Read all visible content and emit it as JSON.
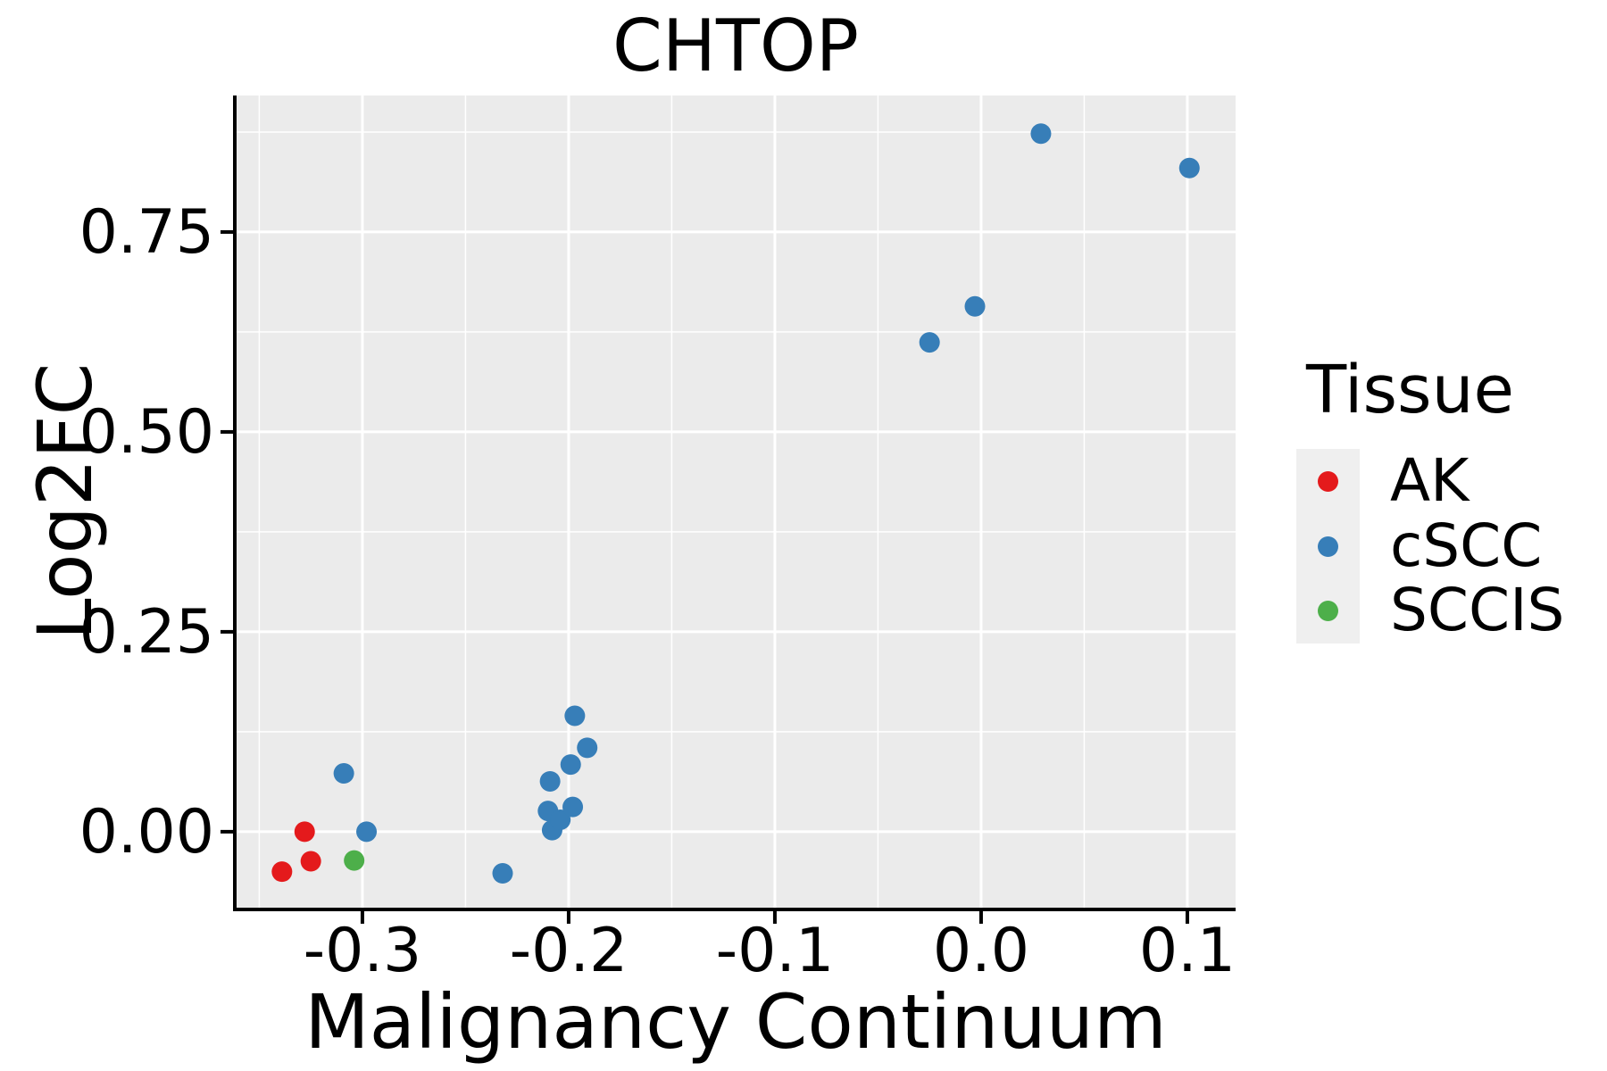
{
  "chart_data": {
    "type": "scatter",
    "title": "CHTOP",
    "xlabel": "Malignancy Continuum",
    "ylabel": "Log2FC",
    "legend_title": "Tissue",
    "legend_position": "right",
    "grid": "on",
    "panel_bg_color": "#EBEBEB",
    "gridline_color": "#FFFFFF",
    "axis_color": "#000000",
    "xlim": [
      -0.361,
      0.1234
    ],
    "ylim": [
      -0.095,
      0.9207
    ],
    "x_major_ticks": [
      {
        "value": -0.3,
        "label": "-0.3"
      },
      {
        "value": -0.2,
        "label": "-0.2"
      },
      {
        "value": -0.1,
        "label": "-0.1"
      },
      {
        "value": 0.0,
        "label": "0.0"
      },
      {
        "value": 0.1,
        "label": "0.1"
      }
    ],
    "x_minor_ticks": [
      -0.35,
      -0.25,
      -0.15,
      -0.05,
      0.05
    ],
    "y_major_ticks": [
      {
        "value": 0.0,
        "label": "0.00"
      },
      {
        "value": 0.25,
        "label": "0.25"
      },
      {
        "value": 0.5,
        "label": "0.50"
      },
      {
        "value": 0.75,
        "label": "0.75"
      }
    ],
    "y_minor_ticks": [
      0.125,
      0.375,
      0.625,
      0.875
    ],
    "point_radius": 11.5,
    "series": [
      {
        "name": "AK",
        "color": "#E41A1C",
        "points": [
          [
            -0.328,
            0.0
          ],
          [
            -0.325,
            -0.037
          ],
          [
            -0.339,
            -0.05
          ]
        ]
      },
      {
        "name": "cSCC",
        "color": "#377EB8",
        "points": [
          [
            -0.309,
            0.073
          ],
          [
            -0.298,
            0.0
          ],
          [
            -0.232,
            -0.052
          ],
          [
            -0.21,
            0.026
          ],
          [
            -0.208,
            0.002
          ],
          [
            -0.204,
            0.015
          ],
          [
            -0.198,
            0.031
          ],
          [
            -0.209,
            0.063
          ],
          [
            -0.199,
            0.084
          ],
          [
            -0.191,
            0.105
          ],
          [
            -0.197,
            0.145
          ],
          [
            -0.025,
            0.612
          ],
          [
            -0.003,
            0.657
          ],
          [
            0.029,
            0.873
          ],
          [
            0.101,
            0.83
          ]
        ]
      },
      {
        "name": "SCCIS",
        "color": "#4DAF4A",
        "points": [
          [
            -0.304,
            -0.036
          ]
        ]
      }
    ]
  }
}
